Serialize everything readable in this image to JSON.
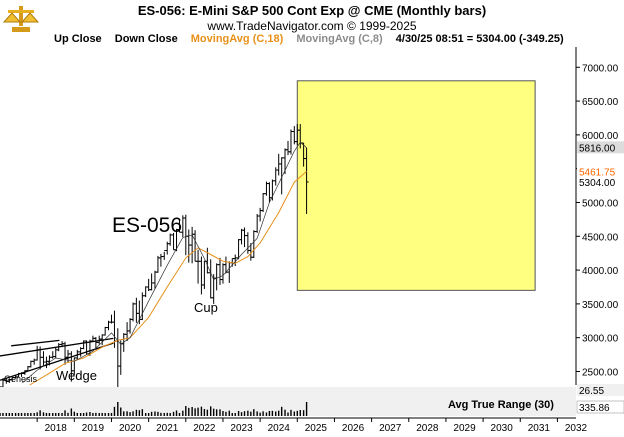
{
  "header": {
    "title": "ES-056:  E-Mini S&P 500 Cont Exp @ CME  (Monthly bars)",
    "copyright": "www.TradeNavigator.com © 1999-2025"
  },
  "legend": [
    {
      "label": "Up Close",
      "color": "#000000"
    },
    {
      "label": "Down Close",
      "color": "#000000"
    },
    {
      "label": "MovingAvg (C,18)",
      "color": "#e8901a"
    },
    {
      "label": "MovingAvg (C,8)",
      "color": "#8c8c8c"
    },
    {
      "label": "4/30/25 08:51 = 5304.00 (-349.25)",
      "color": "#000000"
    }
  ],
  "chart_data": {
    "type": "ohlc",
    "symbol_label": "ES-056",
    "annotations": [
      "Cup",
      "Wedge",
      "Genesis"
    ],
    "y_axis": {
      "ticks": [
        "7000.00",
        "6500.00",
        "6000.00",
        "5500.00",
        "5000.00",
        "4500.00",
        "4000.00",
        "3500.00",
        "3000.00",
        "2500.00"
      ],
      "ylim": [
        2300,
        7300
      ]
    },
    "x_axis": {
      "ticks": [
        "2018",
        "2019",
        "2020",
        "2021",
        "2022",
        "2023",
        "2024",
        "2025",
        "2026",
        "2027",
        "2028",
        "2029",
        "2030",
        "2031",
        "2032"
      ],
      "xlim": [
        2017.0,
        2032.5
      ]
    },
    "price_labels": [
      {
        "text": "5816.00",
        "value": 5816,
        "bg": "#dcdcdc",
        "fg": "#000000"
      },
      {
        "text": "5461.75",
        "value": 5461.75,
        "bg": "#ffffff",
        "fg": "#ff6600"
      },
      {
        "text": "5304.00",
        "value": 5304,
        "bg": "#ffffff",
        "fg": "#000000"
      }
    ],
    "forecast_box": {
      "x0": 2025.0,
      "x1": 2031.4,
      "y0": 3700,
      "y1": 6800,
      "color": "#ffff80"
    },
    "bars": [
      [
        2017.0,
        2240,
        2280,
        2230,
        2270
      ],
      [
        2017.08,
        2270,
        2400,
        2260,
        2370
      ],
      [
        2017.17,
        2370,
        2400,
        2320,
        2360
      ],
      [
        2017.25,
        2360,
        2400,
        2330,
        2380
      ],
      [
        2017.33,
        2380,
        2420,
        2350,
        2410
      ],
      [
        2017.42,
        2410,
        2450,
        2400,
        2420
      ],
      [
        2017.5,
        2420,
        2480,
        2410,
        2470
      ],
      [
        2017.58,
        2470,
        2490,
        2420,
        2470
      ],
      [
        2017.67,
        2470,
        2520,
        2450,
        2510
      ],
      [
        2017.75,
        2510,
        2580,
        2500,
        2570
      ],
      [
        2017.83,
        2570,
        2660,
        2560,
        2650
      ],
      [
        2017.92,
        2650,
        2690,
        2600,
        2670
      ],
      [
        2018.0,
        2670,
        2880,
        2660,
        2820
      ],
      [
        2018.08,
        2820,
        2870,
        2530,
        2710
      ],
      [
        2018.17,
        2710,
        2800,
        2580,
        2640
      ],
      [
        2018.25,
        2640,
        2720,
        2550,
        2650
      ],
      [
        2018.33,
        2650,
        2740,
        2590,
        2710
      ],
      [
        2018.42,
        2710,
        2800,
        2690,
        2720
      ],
      [
        2018.5,
        2720,
        2850,
        2700,
        2820
      ],
      [
        2018.58,
        2820,
        2920,
        2800,
        2900
      ],
      [
        2018.67,
        2900,
        2950,
        2860,
        2910
      ],
      [
        2018.75,
        2910,
        2940,
        2600,
        2710
      ],
      [
        2018.83,
        2710,
        2820,
        2630,
        2760
      ],
      [
        2018.92,
        2760,
        2800,
        2350,
        2510
      ],
      [
        2019.0,
        2510,
        2710,
        2450,
        2700
      ],
      [
        2019.08,
        2700,
        2820,
        2680,
        2790
      ],
      [
        2019.17,
        2790,
        2860,
        2720,
        2840
      ],
      [
        2019.25,
        2840,
        2960,
        2830,
        2950
      ],
      [
        2019.33,
        2950,
        2960,
        2750,
        2760
      ],
      [
        2019.42,
        2760,
        2970,
        2730,
        2950
      ],
      [
        2019.5,
        2950,
        3030,
        2940,
        2990
      ],
      [
        2019.58,
        2990,
        3010,
        2820,
        2930
      ],
      [
        2019.67,
        2930,
        3030,
        2900,
        2980
      ],
      [
        2019.75,
        2980,
        3050,
        2890,
        3040
      ],
      [
        2019.83,
        3040,
        3160,
        3030,
        3150
      ],
      [
        2019.92,
        3150,
        3250,
        3110,
        3230
      ],
      [
        2020.0,
        3230,
        3340,
        3210,
        3230
      ],
      [
        2020.08,
        3230,
        3400,
        2850,
        2950
      ],
      [
        2020.17,
        2950,
        3140,
        2180,
        2580
      ],
      [
        2020.25,
        2580,
        2960,
        2450,
        2910
      ],
      [
        2020.33,
        2910,
        3070,
        2790,
        3050
      ],
      [
        2020.42,
        3050,
        3230,
        2950,
        3100
      ],
      [
        2020.5,
        3100,
        3290,
        3060,
        3270
      ],
      [
        2020.58,
        3270,
        3520,
        3240,
        3500
      ],
      [
        2020.67,
        3500,
        3590,
        3220,
        3360
      ],
      [
        2020.75,
        3360,
        3550,
        3200,
        3270
      ],
      [
        2020.83,
        3270,
        3670,
        3260,
        3620
      ],
      [
        2020.92,
        3620,
        3760,
        3600,
        3750
      ],
      [
        2021.0,
        3750,
        3870,
        3690,
        3710
      ],
      [
        2021.08,
        3710,
        3950,
        3700,
        3810
      ],
      [
        2021.17,
        3810,
        3990,
        3720,
        3970
      ],
      [
        2021.25,
        3970,
        4210,
        3960,
        4180
      ],
      [
        2021.33,
        4180,
        4240,
        4050,
        4200
      ],
      [
        2021.42,
        4200,
        4270,
        4150,
        4290
      ],
      [
        2021.5,
        4290,
        4420,
        4230,
        4390
      ],
      [
        2021.58,
        4390,
        4540,
        4360,
        4520
      ],
      [
        2021.67,
        4520,
        4550,
        4300,
        4300
      ],
      [
        2021.75,
        4300,
        4610,
        4280,
        4600
      ],
      [
        2021.83,
        4600,
        4740,
        4560,
        4560
      ],
      [
        2021.92,
        4560,
        4810,
        4490,
        4770
      ],
      [
        2022.0,
        4770,
        4820,
        4220,
        4500
      ],
      [
        2022.08,
        4500,
        4600,
        4110,
        4370
      ],
      [
        2022.17,
        4370,
        4640,
        4100,
        4530
      ],
      [
        2022.25,
        4530,
        4590,
        4130,
        4130
      ],
      [
        2022.33,
        4130,
        4300,
        3800,
        4130
      ],
      [
        2022.42,
        4130,
        4200,
        3640,
        3780
      ],
      [
        2022.5,
        3780,
        4140,
        3720,
        4130
      ],
      [
        2022.58,
        4130,
        4330,
        3950,
        3960
      ],
      [
        2022.67,
        3960,
        4160,
        3580,
        3590
      ],
      [
        2022.75,
        3590,
        3940,
        3500,
        3880
      ],
      [
        2022.83,
        3880,
        4100,
        3700,
        4080
      ],
      [
        2022.92,
        4080,
        4180,
        3780,
        3860
      ],
      [
        2023.0,
        3860,
        4100,
        3800,
        4080
      ],
      [
        2023.08,
        4080,
        4200,
        3950,
        3970
      ],
      [
        2023.17,
        3970,
        4130,
        3810,
        4110
      ],
      [
        2023.25,
        4110,
        4170,
        4050,
        4170
      ],
      [
        2023.33,
        4170,
        4230,
        4060,
        4180
      ],
      [
        2023.42,
        4180,
        4460,
        4160,
        4450
      ],
      [
        2023.5,
        4450,
        4610,
        4380,
        4590
      ],
      [
        2023.58,
        4590,
        4630,
        4340,
        4510
      ],
      [
        2023.67,
        4510,
        4560,
        4240,
        4290
      ],
      [
        2023.75,
        4290,
        4400,
        4140,
        4190
      ],
      [
        2023.83,
        4190,
        4590,
        4180,
        4570
      ],
      [
        2023.92,
        4570,
        4830,
        4550,
        4800
      ],
      [
        2024.0,
        4800,
        4920,
        4720,
        4880
      ],
      [
        2024.08,
        4880,
        5140,
        4860,
        5130
      ],
      [
        2024.17,
        5130,
        5310,
        5100,
        5280
      ],
      [
        2024.25,
        5280,
        5300,
        5000,
        5070
      ],
      [
        2024.33,
        5070,
        5340,
        5030,
        5320
      ],
      [
        2024.42,
        5320,
        5520,
        5250,
        5480
      ],
      [
        2024.5,
        5480,
        5720,
        5400,
        5570
      ],
      [
        2024.58,
        5570,
        5670,
        5120,
        5660
      ],
      [
        2024.67,
        5660,
        5800,
        5420,
        5780
      ],
      [
        2024.75,
        5780,
        5910,
        5700,
        5750
      ],
      [
        2024.83,
        5750,
        6080,
        5710,
        6050
      ],
      [
        2024.92,
        6050,
        6130,
        5860,
        5900
      ],
      [
        2025.0,
        5900,
        6160,
        5850,
        6070
      ],
      [
        2025.08,
        6070,
        6160,
        5800,
        5880
      ],
      [
        2025.17,
        5880,
        5880,
        5530,
        5650
      ],
      [
        2025.25,
        5650,
        5810,
        4830,
        5304
      ]
    ],
    "ma8": [
      [
        2017.6,
        2330
      ],
      [
        2018.0,
        2520
      ],
      [
        2018.5,
        2700
      ],
      [
        2019.0,
        2650
      ],
      [
        2019.5,
        2800
      ],
      [
        2020.0,
        3070
      ],
      [
        2020.25,
        2900
      ],
      [
        2020.5,
        3000
      ],
      [
        2021.0,
        3540
      ],
      [
        2021.5,
        4070
      ],
      [
        2021.92,
        4480
      ],
      [
        2022.17,
        4520
      ],
      [
        2022.5,
        4170
      ],
      [
        2022.75,
        3860
      ],
      [
        2023.0,
        3920
      ],
      [
        2023.5,
        4230
      ],
      [
        2023.92,
        4470
      ],
      [
        2024.25,
        5000
      ],
      [
        2024.5,
        5280
      ],
      [
        2024.92,
        5760
      ],
      [
        2025.08,
        5890
      ],
      [
        2025.25,
        5810
      ]
    ],
    "ma18": [
      [
        2017.8,
        2300
      ],
      [
        2018.25,
        2450
      ],
      [
        2018.75,
        2620
      ],
      [
        2019.25,
        2700
      ],
      [
        2019.75,
        2860
      ],
      [
        2020.17,
        2960
      ],
      [
        2020.5,
        3000
      ],
      [
        2021.0,
        3300
      ],
      [
        2021.5,
        3750
      ],
      [
        2022.0,
        4180
      ],
      [
        2022.33,
        4330
      ],
      [
        2022.67,
        4230
      ],
      [
        2023.0,
        4130
      ],
      [
        2023.33,
        4100
      ],
      [
        2023.67,
        4200
      ],
      [
        2024.0,
        4400
      ],
      [
        2024.5,
        4850
      ],
      [
        2024.92,
        5300
      ],
      [
        2025.25,
        5461.75
      ]
    ],
    "wedge_lines": [
      [
        [
          2017.0,
          2730
        ],
        [
          2020.05,
          2990
        ]
      ],
      [
        [
          2017.0,
          2370
        ],
        [
          2020.05,
          2920
        ]
      ],
      [
        [
          2017.3,
          2880
        ],
        [
          2018.6,
          2960
        ]
      ]
    ],
    "indicator": {
      "name": "Avg True Range (30)",
      "labels": [
        "26.55",
        "335.86"
      ],
      "bg": "#f0f0f0"
    }
  }
}
